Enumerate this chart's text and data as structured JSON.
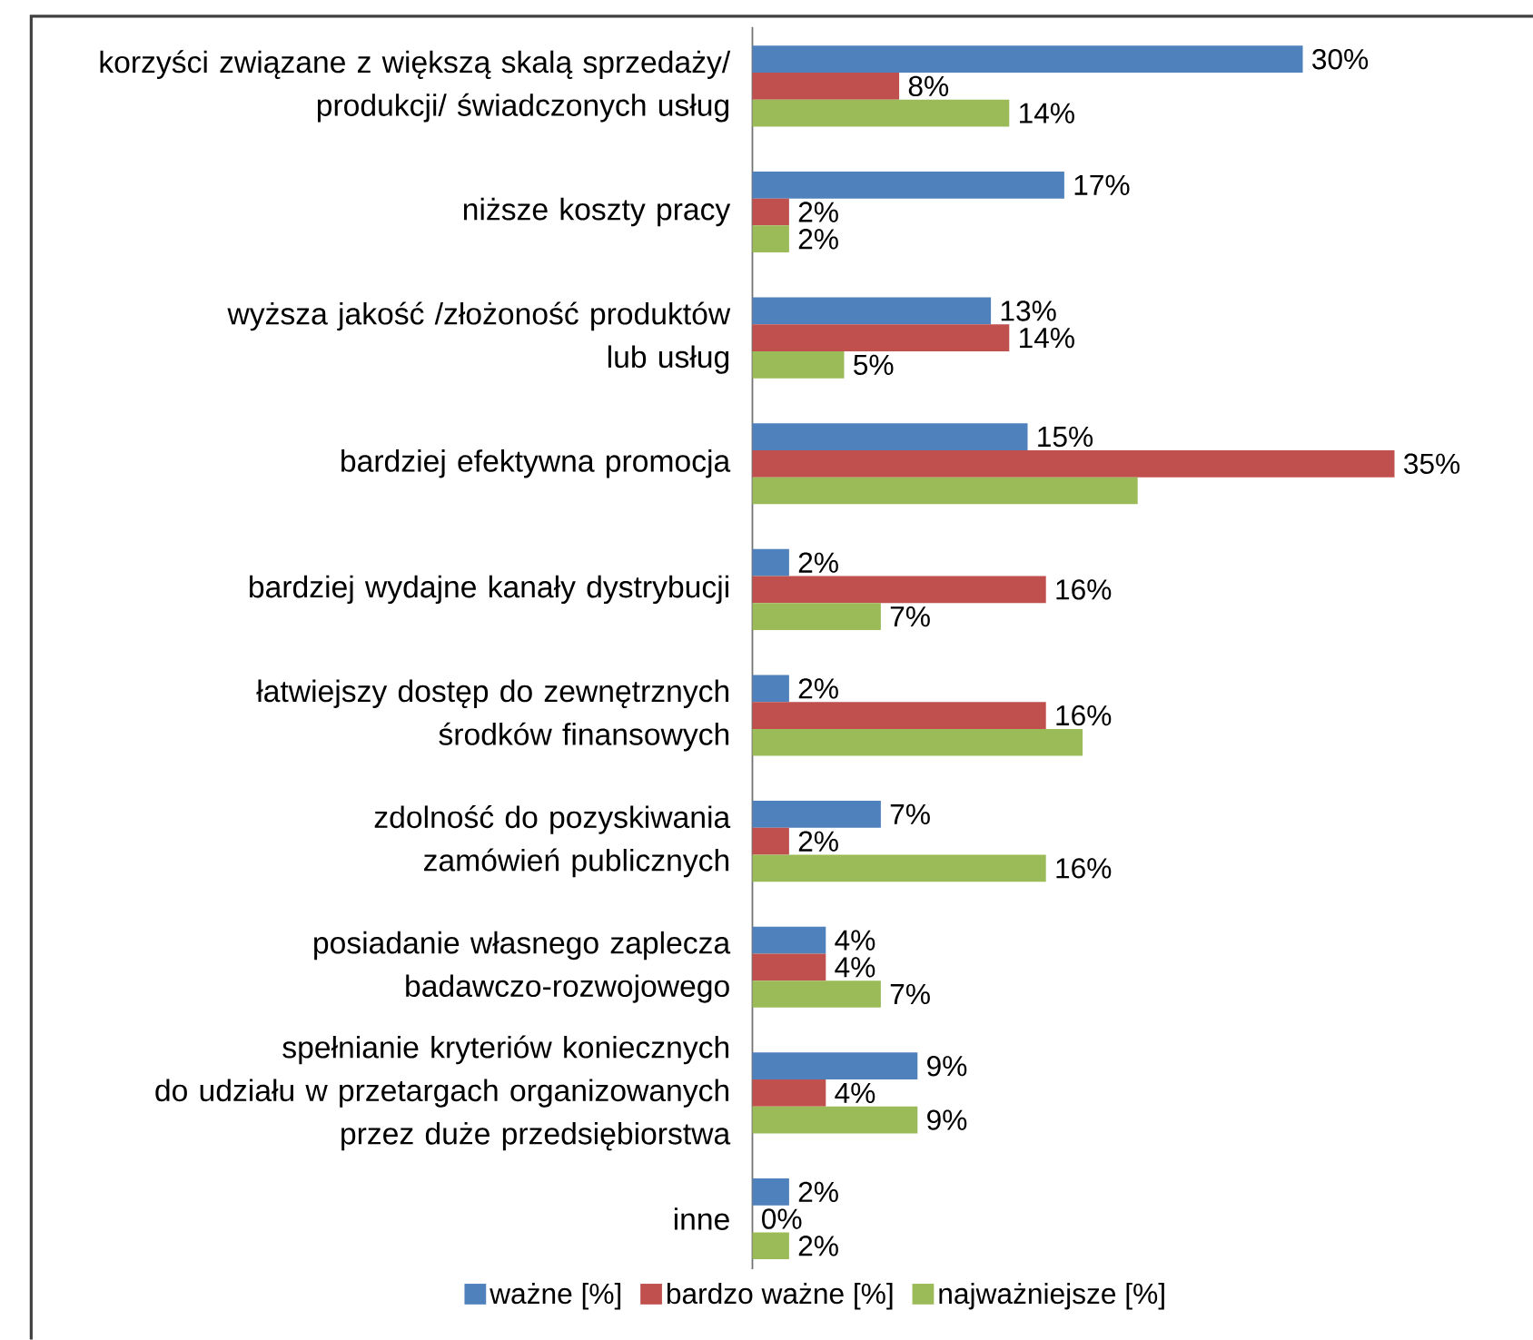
{
  "chart_data": {
    "type": "bar",
    "orientation": "horizontal",
    "categories": [
      "korzyści związane z większą skalą sprzedaży/\nprodukcji/ świadczonych usług",
      "niższe koszty pracy",
      "wyższa jakość /złożoność produktów\nlub usług",
      "bardziej efektywna promocja",
      "bardziej wydajne kanały dystrybucji",
      "łatwiejszy dostęp do zewnętrznych\nśrodków finansowych",
      "zdolność do pozyskiwania\nzamówień publicznych",
      "posiadanie własnego zaplecza\nbadawczo-rozwojowego",
      "spełnianie kryteriów koniecznych\ndo udziału w przetargach organizowanych\nprzez duże przedsiębiorstwa",
      "inne"
    ],
    "series": [
      {
        "name": "ważne [%]",
        "color": "#4f81bd",
        "values": [
          30,
          17,
          13,
          15,
          2,
          2,
          7,
          4,
          9,
          2
        ],
        "value_labels": [
          "30%",
          "17%",
          "13%",
          "15%",
          "2%",
          "2%",
          "7%",
          "4%",
          "9%",
          "2%"
        ]
      },
      {
        "name": "bardzo ważne [%]",
        "color": "#c0504d",
        "values": [
          8,
          2,
          14,
          35,
          16,
          16,
          2,
          4,
          4,
          0
        ],
        "value_labels": [
          "8%",
          "2%",
          "14%",
          "35%",
          "16%",
          "16%",
          "2%",
          "4%",
          "4%",
          "0%"
        ]
      },
      {
        "name": "najważniejsze [%]",
        "color": "#9bbb59",
        "values": [
          14,
          2,
          5,
          21,
          7,
          18,
          16,
          7,
          9,
          2
        ],
        "value_labels": [
          "14%",
          "2%",
          "5%",
          null,
          "7%",
          null,
          "16%",
          "7%",
          "9%",
          "2%"
        ]
      }
    ],
    "legend": "bottom"
  }
}
